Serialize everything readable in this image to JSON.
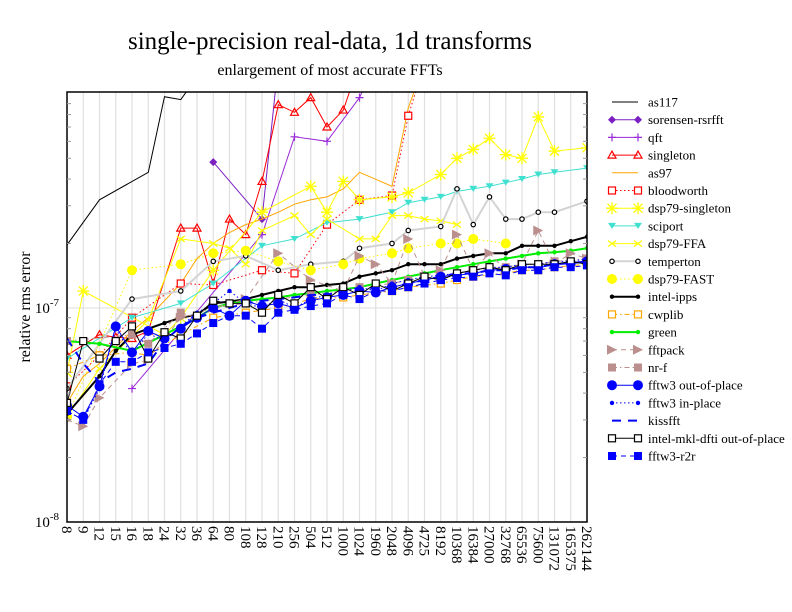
{
  "chart_data": {
    "type": "line",
    "title": "single-precision real-data, 1d transforms",
    "subtitle": "enlargement of most accurate FFTs",
    "xlabel": "",
    "ylabel": "relative rms error",
    "yscale": "log",
    "ylim": [
      1e-08,
      1.02e-06
    ],
    "ytick_labels": [
      {
        "value": 1e-07,
        "base": "10",
        "exp": "-7"
      },
      {
        "value": 1e-08,
        "base": "10",
        "exp": "-8"
      }
    ],
    "grid": true,
    "legend_position": "right",
    "categories": [
      "8",
      "9",
      "12",
      "15",
      "16",
      "18",
      "24",
      "32",
      "36",
      "64",
      "80",
      "108",
      "128",
      "210",
      "256",
      "504",
      "512",
      "1000",
      "1024",
      "1960",
      "2048",
      "4096",
      "4725",
      "8192",
      "10368",
      "16384",
      "27000",
      "32768",
      "65536",
      "75600",
      "131072",
      "165375",
      "262144"
    ],
    "unit_scale": 1e-07,
    "series": [
      {
        "name": "as117",
        "color": "#000000",
        "dash": "solid",
        "marker": "none",
        "width": 1,
        "values": [
          1.97,
          null,
          3.2,
          null,
          null,
          4.3,
          9.7,
          9.4,
          12,
          null,
          null,
          null,
          null,
          null,
          null,
          null,
          null,
          null,
          null,
          null,
          null,
          null,
          null,
          null,
          null,
          null,
          null,
          null,
          null,
          null,
          null,
          null,
          null
        ]
      },
      {
        "name": "sorensen-rsrfft",
        "color": "#7b1fc2",
        "dash": "solid",
        "marker": "diamond",
        "width": 1,
        "values": [
          null,
          null,
          null,
          null,
          null,
          null,
          null,
          null,
          null,
          4.8,
          null,
          null,
          2.6,
          14,
          null,
          null,
          null,
          null,
          null,
          null,
          null,
          null,
          null,
          null,
          null,
          null,
          null,
          null,
          null,
          null,
          null,
          null,
          null
        ]
      },
      {
        "name": "qft",
        "color": "#9a2bd8",
        "dash": "solid",
        "marker": "plus",
        "width": 1,
        "values": [
          null,
          null,
          null,
          null,
          0.42,
          null,
          null,
          null,
          null,
          null,
          null,
          null,
          2.2,
          null,
          6.3,
          null,
          6.0,
          null,
          9.6,
          14,
          null,
          null,
          null,
          null,
          null,
          null,
          null,
          null,
          null,
          null,
          null,
          null,
          null
        ]
      },
      {
        "name": "singleton",
        "color": "#ff0000",
        "dash": "solid",
        "marker": "triangle",
        "width": 1,
        "values": [
          0.6,
          null,
          0.75,
          0.73,
          0.72,
          0.78,
          null,
          2.36,
          2.36,
          1.3,
          2.6,
          2.2,
          3.9,
          8.9,
          8.2,
          9.6,
          7.0,
          8.4,
          14,
          null,
          null,
          null,
          null,
          null,
          null,
          null,
          null,
          null,
          null,
          null,
          null,
          null,
          null
        ]
      },
      {
        "name": "as97",
        "color": "#ffa500",
        "dash": "solid",
        "marker": "none",
        "width": 1,
        "values": [
          0.36,
          0.48,
          0.55,
          null,
          0.78,
          0.9,
          null,
          1.3,
          1.7,
          2.0,
          2.25,
          2.45,
          2.6,
          2.8,
          3.05,
          3.2,
          3.3,
          3.6,
          4.3,
          null,
          3.7,
          8.6,
          14,
          null,
          null,
          null,
          null,
          null,
          null,
          null,
          null,
          null,
          null
        ]
      },
      {
        "name": "bloodworth",
        "color": "#ff0000",
        "dash": "dotted",
        "marker": "open-square",
        "width": 1,
        "values": [
          0.43,
          null,
          0.6,
          null,
          0.9,
          null,
          null,
          1.3,
          null,
          1.28,
          null,
          null,
          1.5,
          null,
          1.45,
          null,
          2.45,
          null,
          3.2,
          null,
          3.35,
          7.9,
          14,
          null,
          null,
          null,
          null,
          null,
          null,
          null,
          null,
          null,
          null
        ]
      },
      {
        "name": "dsp79-singleton",
        "color": "#ffff00",
        "dash": "solid",
        "marker": "star",
        "width": 1,
        "values": [
          0.5,
          1.2,
          null,
          null,
          null,
          null,
          0.75,
          0.9,
          null,
          1.5,
          null,
          null,
          2.8,
          null,
          null,
          3.7,
          2.8,
          3.9,
          3.2,
          null,
          3.3,
          3.45,
          null,
          4.2,
          5.0,
          5.5,
          6.2,
          5.2,
          5.0,
          7.8,
          5.4,
          null,
          5.6
        ]
      },
      {
        "name": "sciport",
        "color": "#40e0d0",
        "dash": "solid",
        "marker": "down-triangle",
        "width": 1,
        "values": [
          0.58,
          null,
          null,
          null,
          0.9,
          null,
          null,
          1.05,
          null,
          1.3,
          null,
          null,
          1.95,
          null,
          2.1,
          null,
          2.5,
          null,
          2.6,
          null,
          2.8,
          3.1,
          3.2,
          3.3,
          3.5,
          3.6,
          3.7,
          3.85,
          4.0,
          4.2,
          4.3,
          null,
          4.5
        ]
      },
      {
        "name": "dsp79-FFA",
        "color": "#ffff00",
        "dash": "solid",
        "marker": "x",
        "width": 1,
        "values": [
          0.31,
          null,
          0.52,
          null,
          null,
          0.88,
          null,
          2.1,
          null,
          2.0,
          1.9,
          1.6,
          2.3,
          null,
          2.7,
          2.2,
          2.6,
          null,
          2.1,
          2.1,
          2.7,
          2.7,
          2.6,
          2.55,
          2.45,
          null,
          null,
          null,
          null,
          null,
          null,
          null,
          null
        ]
      },
      {
        "name": "temperton",
        "color": "#d3d3d3",
        "dash": "solid",
        "marker": "small-circle",
        "width": 2,
        "values": [
          0.42,
          null,
          null,
          null,
          1.1,
          null,
          null,
          1.2,
          null,
          1.65,
          null,
          1.75,
          null,
          1.5,
          null,
          1.6,
          null,
          1.65,
          1.9,
          null,
          2.0,
          2.3,
          null,
          2.4,
          3.6,
          2.45,
          3.3,
          2.6,
          2.6,
          2.8,
          2.8,
          null,
          3.15
        ]
      },
      {
        "name": "dsp79-FAST",
        "color": "#ffff00",
        "dash": "dotted",
        "marker": "filled-circle",
        "width": 1,
        "values": [
          0.31,
          null,
          null,
          null,
          1.5,
          null,
          null,
          1.6,
          null,
          1.8,
          null,
          1.85,
          null,
          1.65,
          null,
          1.5,
          null,
          1.6,
          1.7,
          null,
          1.8,
          1.9,
          null,
          2.0,
          2.0,
          2.1,
          null,
          2.0,
          null,
          null,
          null,
          null,
          null
        ]
      },
      {
        "name": "intel-ipps",
        "color": "#000000",
        "dash": "solid",
        "marker": "small-dot",
        "width": 2,
        "values": [
          0.32,
          null,
          0.48,
          0.63,
          0.75,
          0.8,
          0.85,
          0.9,
          0.93,
          1.05,
          1.07,
          1.1,
          1.15,
          1.2,
          1.25,
          1.25,
          1.28,
          1.3,
          1.4,
          1.45,
          1.5,
          1.6,
          1.6,
          1.6,
          1.7,
          1.75,
          1.8,
          1.8,
          1.95,
          1.95,
          1.95,
          2.05,
          2.15
        ]
      },
      {
        "name": "cwplib",
        "color": "#ffa500",
        "dash": "dashdot",
        "marker": "open-square",
        "width": 1,
        "values": [
          0.52,
          null,
          0.6,
          null,
          0.62,
          0.6,
          null,
          0.75,
          null,
          0.9,
          null,
          0.95,
          null,
          1.0,
          null,
          1.1,
          null,
          1.12,
          1.15,
          null,
          1.2,
          1.25,
          null,
          1.3,
          1.35,
          1.4,
          null,
          1.45,
          1.5,
          1.5,
          1.55,
          null,
          1.6
        ]
      },
      {
        "name": "green",
        "color": "#00ee00",
        "dash": "solid",
        "marker": "small-dot",
        "width": 2,
        "values": [
          0.7,
          null,
          0.68,
          null,
          0.63,
          null,
          0.75,
          null,
          0.9,
          1.0,
          1.05,
          1.08,
          1.1,
          1.12,
          1.15,
          1.17,
          1.2,
          1.22,
          1.25,
          1.3,
          1.35,
          1.4,
          1.45,
          1.5,
          1.55,
          1.6,
          1.65,
          1.7,
          1.75,
          1.8,
          1.82,
          1.85,
          1.9
        ]
      },
      {
        "name": "fftpack",
        "color": "#bc8f8f",
        "dash": "dashed",
        "marker": "right-triangle",
        "width": 1,
        "values": [
          0.3,
          0.28,
          0.38,
          null,
          0.55,
          0.57,
          null,
          0.9,
          null,
          1.0,
          null,
          1.1,
          null,
          1.8,
          null,
          1.35,
          null,
          1.2,
          1.75,
          1.6,
          1.3,
          2.1,
          1.4,
          1.5,
          2.2,
          1.5,
          1.8,
          1.5,
          1.6,
          2.3,
          1.6,
          1.8,
          1.7
        ]
      },
      {
        "name": "nr-f",
        "color": "#bc8f8f",
        "dash": "dashdot",
        "marker": "filled-square",
        "width": 1,
        "values": [
          0.7,
          null,
          null,
          null,
          0.75,
          0.68,
          null,
          0.95,
          0.9,
          1.0,
          null,
          1.05,
          null,
          1.1,
          null,
          1.15,
          null,
          1.2,
          1.25,
          null,
          1.3,
          1.35,
          null,
          1.4,
          1.45,
          1.5,
          null,
          1.55,
          1.6,
          1.6,
          1.65,
          null,
          1.7
        ]
      },
      {
        "name": "fftw3 out-of-place",
        "color": "#0000ff",
        "dash": "solid",
        "marker": "filled-circle",
        "width": 1,
        "values": [
          0.35,
          0.31,
          0.43,
          0.82,
          0.62,
          0.78,
          0.72,
          0.8,
          0.9,
          1.0,
          0.92,
          1.08,
          1.02,
          1.05,
          1.0,
          1.08,
          1.12,
          1.15,
          1.2,
          1.18,
          1.25,
          1.3,
          1.35,
          1.4,
          1.42,
          1.45,
          1.5,
          1.52,
          1.55,
          1.55,
          1.6,
          1.62,
          1.65
        ]
      },
      {
        "name": "fftw3 in-place",
        "color": "#0000ff",
        "dash": "dotted",
        "marker": "small-dot",
        "width": 1,
        "values": [
          0.33,
          0.3,
          0.42,
          0.8,
          0.6,
          0.76,
          0.7,
          0.82,
          0.95,
          1.05,
          1.2,
          1.05,
          1.0,
          1.1,
          1.0,
          1.1,
          1.15,
          1.2,
          1.25,
          1.2,
          1.3,
          1.35,
          1.4,
          1.42,
          1.45,
          1.5,
          1.55,
          1.55,
          1.6,
          1.6,
          1.65,
          1.65,
          1.7
        ]
      },
      {
        "name": "kissfft",
        "color": "#0000ff",
        "dash": "longdash",
        "marker": "none",
        "width": 2,
        "values": [
          0.72,
          0.55,
          0.45,
          0.5,
          0.52,
          0.55,
          0.7,
          0.82,
          0.9,
          0.95,
          1.0,
          1.05,
          1.08,
          1.1,
          1.12,
          1.15,
          1.15,
          1.2,
          1.2,
          1.25,
          1.25,
          1.3,
          1.35,
          1.4,
          1.45,
          1.45,
          1.5,
          1.5,
          1.55,
          1.55,
          1.6,
          1.62,
          1.65
        ]
      },
      {
        "name": "intel-mkl-dfti out-of-place",
        "color": "#000000",
        "dash": "solid",
        "marker": "open-square",
        "width": 1,
        "values": [
          0.36,
          0.7,
          0.58,
          0.7,
          0.82,
          0.58,
          0.77,
          0.72,
          0.92,
          1.08,
          1.05,
          1.05,
          0.95,
          1.15,
          1.05,
          1.25,
          1.1,
          1.25,
          1.15,
          1.3,
          1.2,
          1.3,
          1.4,
          1.35,
          1.45,
          1.5,
          1.55,
          1.5,
          1.6,
          1.6,
          1.6,
          1.65,
          1.6
        ]
      },
      {
        "name": "fftw3-r2r",
        "color": "#0000ff",
        "dash": "dashed",
        "marker": "filled-square",
        "width": 1,
        "values": [
          0.33,
          0.3,
          0.44,
          0.56,
          0.56,
          0.62,
          0.65,
          0.68,
          0.76,
          0.85,
          0.92,
          0.92,
          0.8,
          0.95,
          0.98,
          1.02,
          1.05,
          1.15,
          1.1,
          1.2,
          1.2,
          1.25,
          1.3,
          1.35,
          1.38,
          1.4,
          1.45,
          1.42,
          1.5,
          1.5,
          1.55,
          1.55,
          1.58
        ]
      }
    ]
  }
}
